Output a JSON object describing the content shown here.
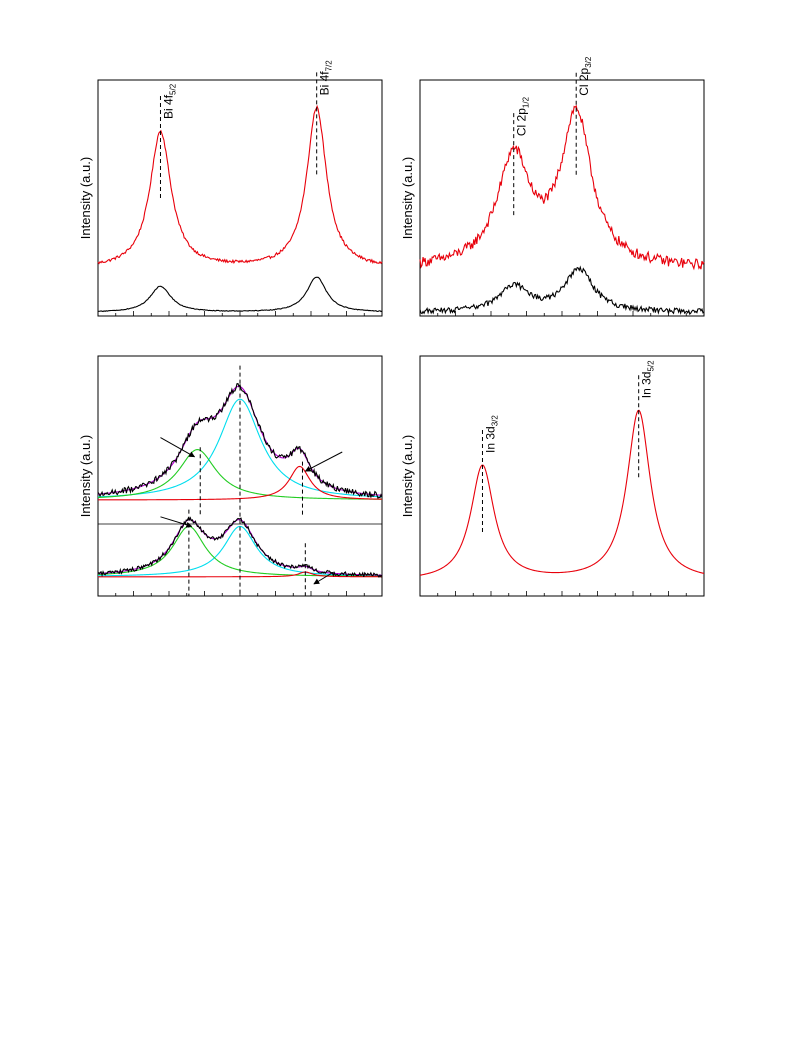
{
  "chart_data": [
    {
      "type": "line",
      "panel": "top-left",
      "ylabel": "Intensity (a.u.)",
      "xlim": [
        0,
        100
      ],
      "ylim": [
        0,
        100
      ],
      "annotations": [
        {
          "label": "Bi 4f",
          "sub": "5/2",
          "x": 22
        },
        {
          "label": "Bi 4f",
          "sub": "7/2",
          "x": 77
        }
      ],
      "series": [
        {
          "color": "#e8000b",
          "baseline": 20,
          "peaks": [
            [
              22,
              58,
              4.5
            ],
            [
              77,
              68,
              4.2
            ]
          ]
        },
        {
          "color": "#000000",
          "baseline": 1.5,
          "peaks": [
            [
              22,
              11,
              4.5
            ],
            [
              77,
              15,
              4.2
            ]
          ]
        }
      ],
      "noise": [
        0.6,
        0.15
      ]
    },
    {
      "type": "line",
      "panel": "top-right",
      "ylabel": "Intensity (a.u.)",
      "xlim": [
        0,
        100
      ],
      "ylim": [
        0,
        100
      ],
      "annotations": [
        {
          "label": "Cl 2p",
          "sub": "1/2",
          "x": 33
        },
        {
          "label": "Cl 2p",
          "sub": "3/2",
          "x": 55
        }
      ],
      "series": [
        {
          "color": "#e8000b",
          "baseline": 20,
          "peaks": [
            [
              33,
              46,
              7
            ],
            [
              55,
              64,
              6.5
            ]
          ]
        },
        {
          "color": "#000000",
          "baseline": 1.5,
          "peaks": [
            [
              33,
              11,
              6
            ],
            [
              56,
              18,
              6
            ]
          ]
        }
      ],
      "noise": [
        2.2,
        1.2
      ]
    },
    {
      "type": "line",
      "panel": "bottom-left",
      "ylabel": "Intensity (a.u.)",
      "xlim": [
        0,
        100
      ],
      "ylim": [
        0,
        100
      ],
      "annotations": [],
      "series": [
        {
          "color": "#00ddee",
          "baseline": 40,
          "peaks": [
            [
              50,
              42,
              9
            ]
          ],
          "noise": 0
        },
        {
          "color": "#22cc22",
          "baseline": 40,
          "peaks": [
            [
              35,
              21,
              8
            ]
          ],
          "noise": 0
        },
        {
          "color": "#e8000b",
          "baseline": 40,
          "peaks": [
            [
              71,
              14,
              4.5
            ]
          ],
          "noise": 0
        },
        {
          "color": "#b000d0",
          "baseline": 40,
          "peaks": [
            [
              50,
              42,
              9
            ],
            [
              35,
              21,
              8
            ],
            [
              71,
              14,
              4.5
            ]
          ],
          "noise": 0
        },
        {
          "color": "#000000",
          "baseline": 40,
          "peaks": [
            [
              50,
              42,
              9
            ],
            [
              35,
              21,
              8
            ],
            [
              71,
              14,
              4.5
            ]
          ],
          "noise": 1.3
        },
        {
          "color": "#00ddee",
          "baseline": 8,
          "peaks": [
            [
              50,
              21,
              7
            ]
          ],
          "noise": 0
        },
        {
          "color": "#22cc22",
          "baseline": 8,
          "peaks": [
            [
              32,
              21,
              7
            ]
          ],
          "noise": 0
        },
        {
          "color": "#e8000b",
          "baseline": 8,
          "peaks": [
            [
              73,
              2,
              3
            ]
          ],
          "noise": 0
        },
        {
          "color": "#b000d0",
          "baseline": 8,
          "peaks": [
            [
              50,
              21,
              7
            ],
            [
              32,
              21,
              7
            ],
            [
              73,
              2,
              3
            ]
          ],
          "noise": 0
        },
        {
          "color": "#000000",
          "baseline": 8,
          "peaks": [
            [
              50,
              21,
              7
            ],
            [
              32,
              21,
              7
            ],
            [
              73,
              2,
              3
            ]
          ],
          "noise": 0.9
        }
      ]
    },
    {
      "type": "line",
      "panel": "bottom-right",
      "ylabel": "Intensity (a.u.)",
      "xlim": [
        0,
        100
      ],
      "ylim": [
        0,
        100
      ],
      "annotations": [
        {
          "label": "In 3d",
          "sub": "3/2",
          "x": 22
        },
        {
          "label": "In 3d",
          "sub": "5/2",
          "x": 77
        }
      ],
      "series": [
        {
          "color": "#e8000b",
          "baseline": 6,
          "peaks": [
            [
              22,
              48,
              5
            ],
            [
              77,
              71,
              5
            ]
          ]
        }
      ],
      "noise": [
        0
      ]
    }
  ]
}
